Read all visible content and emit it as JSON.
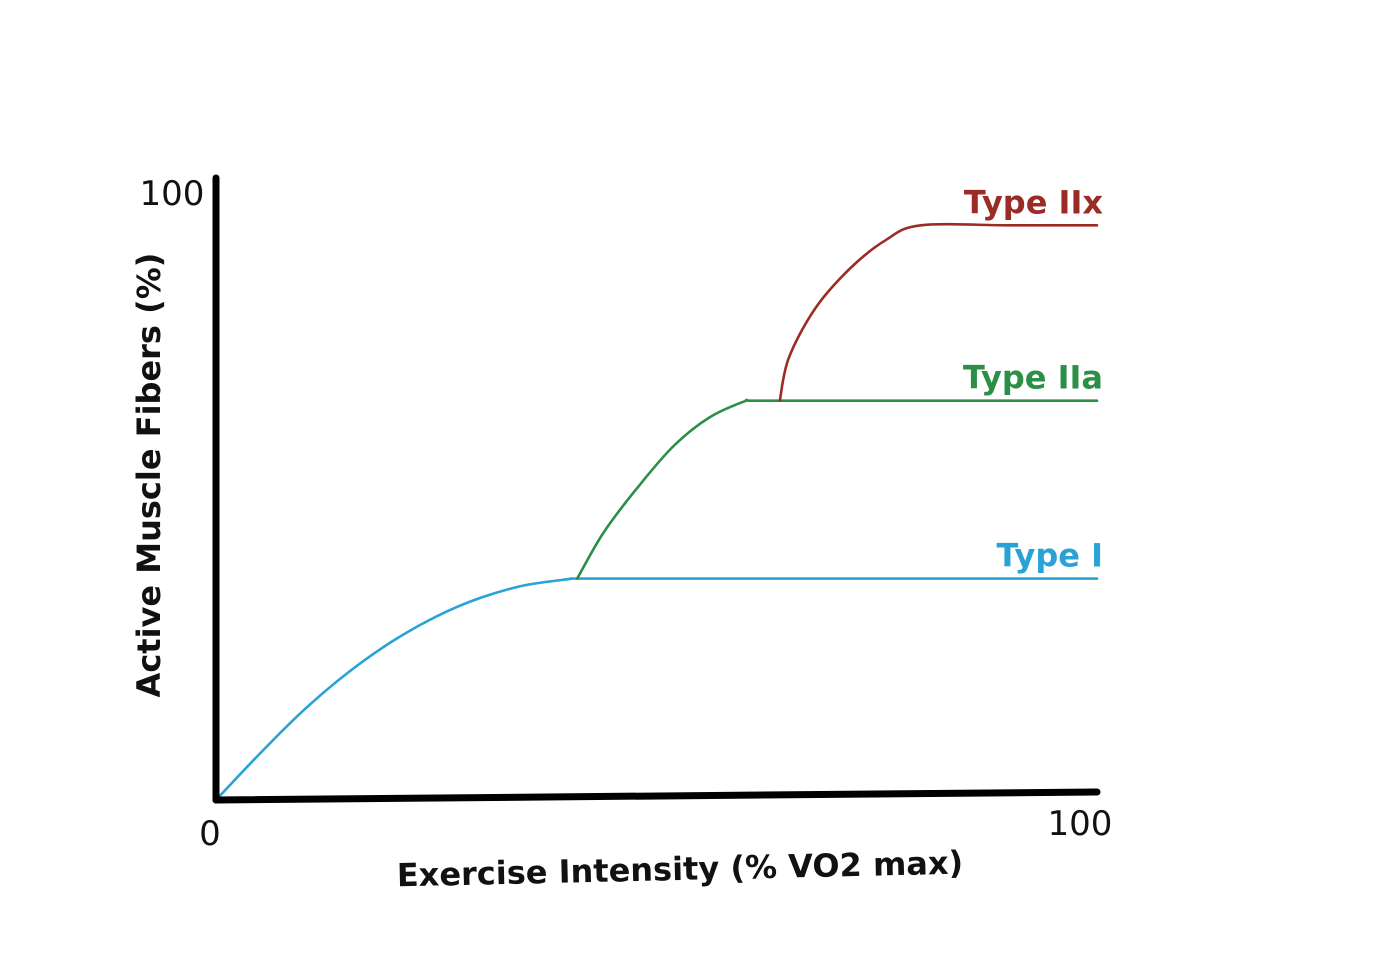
{
  "chart_data": {
    "type": "line",
    "title": "",
    "xlabel": "Exercise Intensity (% VO2 max)",
    "ylabel": "Active Muscle Fibers (%)",
    "xlim": [
      0,
      100
    ],
    "ylim": [
      0,
      100
    ],
    "x_ticks": [
      "0",
      "100"
    ],
    "y_ticks": [
      "100"
    ],
    "grid": false,
    "legend": "none",
    "series": [
      {
        "name": "Type I",
        "color": "#29a3d5",
        "x": [
          0,
          5,
          10,
          15,
          20,
          25,
          30,
          35,
          40,
          41,
          50,
          60,
          70,
          80,
          90,
          100
        ],
        "y": [
          0,
          7.5,
          14.5,
          20.5,
          25.5,
          29.5,
          32.5,
          34.5,
          35.5,
          35.6,
          35.6,
          35.6,
          35.6,
          35.6,
          35.6,
          35.6
        ]
      },
      {
        "name": "Type IIa",
        "color": "#2b8f48",
        "x": [
          41,
          44,
          48,
          52,
          56,
          60,
          61,
          70,
          80,
          90,
          100
        ],
        "y": [
          35.6,
          43,
          50.5,
          57,
          61.5,
          64.1,
          64.2,
          64.2,
          64.2,
          64.2,
          64.2
        ]
      },
      {
        "name": "Type IIx",
        "color": "#9b2c25",
        "x": [
          64,
          65,
          68,
          72,
          76,
          80,
          90,
          100
        ],
        "y": [
          64.2,
          71,
          79,
          85.5,
          90,
          92.4,
          92.4,
          92.4
        ]
      }
    ]
  }
}
